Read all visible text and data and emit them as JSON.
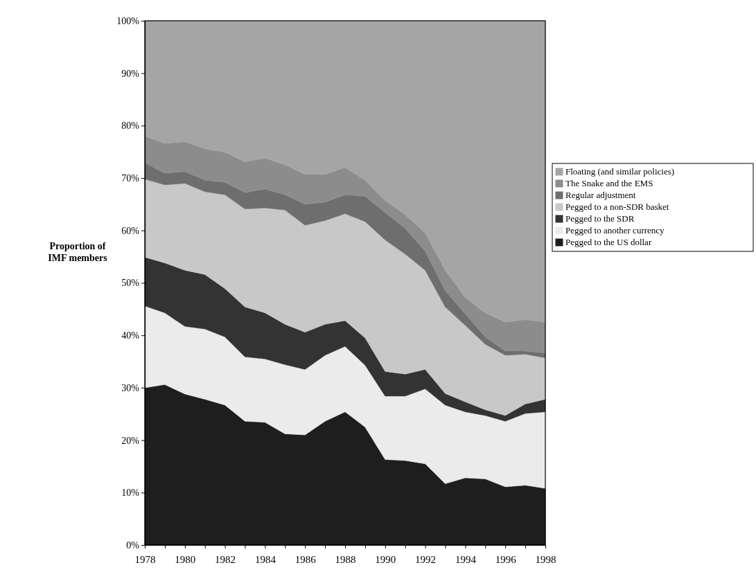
{
  "chart_data": {
    "type": "area",
    "stacked": true,
    "ylabel": "Proportion of IMF members",
    "legend": "right",
    "grid": false,
    "x": [
      1978,
      1979,
      1980,
      1981,
      1982,
      1983,
      1984,
      1985,
      1986,
      1987,
      1988,
      1989,
      1990,
      1991,
      1992,
      1993,
      1994,
      1995,
      1996,
      1997,
      1998
    ],
    "xlim": [
      1978,
      1998
    ],
    "xticks": [
      1978,
      {
        "value": 1979,
        "label": null
      },
      1980,
      {
        "value": 1981,
        "label": null
      },
      1982,
      {
        "value": 1983,
        "label": null
      },
      1984,
      {
        "value": 1985,
        "label": null
      },
      1986,
      {
        "value": 1987,
        "label": null
      },
      1988,
      {
        "value": 1989,
        "label": null
      },
      1990,
      {
        "value": 1991,
        "label": null
      },
      1992,
      {
        "value": 1993,
        "label": null
      },
      1994,
      {
        "value": 1995,
        "label": null
      },
      1996,
      {
        "value": 1997,
        "label": null
      },
      1998
    ],
    "ylim": [
      0,
      100
    ],
    "yticks": [
      {
        "value": 0,
        "label": "0%"
      },
      {
        "value": 10,
        "label": "10%"
      },
      {
        "value": 20,
        "label": "20%"
      },
      {
        "value": 30,
        "label": "30%"
      },
      {
        "value": 40,
        "label": "40%"
      },
      {
        "value": 50,
        "label": "50%"
      },
      {
        "value": 60,
        "label": "60%"
      },
      {
        "value": 70,
        "label": "70%"
      },
      {
        "value": 80,
        "label": "80%"
      },
      {
        "value": 90,
        "label": "90%"
      },
      {
        "value": 100,
        "label": "100%"
      }
    ],
    "series": [
      {
        "name": "Pegged to the US dollar",
        "color": "#1e1e1e",
        "values": [
          30.0,
          30.6,
          28.8,
          27.8,
          26.7,
          23.6,
          23.4,
          21.2,
          21.0,
          23.6,
          25.4,
          22.5,
          16.3,
          16.1,
          15.5,
          11.7,
          12.8,
          12.6,
          11.1,
          11.4,
          10.8
        ]
      },
      {
        "name": "Pegged to another currency",
        "color": "#ebebeb",
        "values": [
          15.6,
          13.7,
          12.9,
          13.4,
          13.0,
          12.3,
          12.1,
          13.2,
          12.5,
          12.6,
          12.5,
          11.8,
          12.1,
          12.3,
          14.3,
          15.0,
          12.6,
          12.1,
          12.5,
          13.7,
          14.6
        ]
      },
      {
        "name": "Pegged to the SDR",
        "color": "#333333",
        "values": [
          9.3,
          9.5,
          10.7,
          10.4,
          9.2,
          9.5,
          8.8,
          7.7,
          7.1,
          5.9,
          4.9,
          5.2,
          4.7,
          4.2,
          3.7,
          2.2,
          1.9,
          1.1,
          1.1,
          1.8,
          2.4
        ]
      },
      {
        "name": "Pegged to a non-SDR basket",
        "color": "#c8c8c8",
        "values": [
          14.9,
          14.9,
          16.6,
          15.8,
          17.9,
          18.7,
          20.0,
          21.8,
          20.4,
          19.8,
          20.4,
          22.2,
          25.1,
          22.9,
          18.9,
          16.5,
          14.6,
          12.5,
          11.5,
          9.5,
          7.9
        ]
      },
      {
        "name": "Regular adjustment",
        "color": "#6e6e6e",
        "values": [
          3.1,
          2.2,
          2.2,
          2.2,
          2.4,
          3.1,
          3.6,
          2.9,
          4.0,
          3.5,
          3.6,
          4.8,
          5.2,
          4.9,
          3.6,
          3.1,
          2.2,
          1.4,
          0.8,
          0.6,
          0.9
        ]
      },
      {
        "name": "The Snake and the EMS",
        "color": "#8c8c8c",
        "values": [
          5.1,
          5.7,
          5.7,
          6.0,
          5.7,
          5.9,
          5.9,
          5.7,
          5.7,
          5.3,
          5.2,
          3.1,
          2.3,
          2.6,
          3.5,
          3.9,
          3.1,
          4.6,
          5.5,
          6.0,
          5.9
        ]
      },
      {
        "name": "Floating (and similar policies)",
        "color": "#a5a5a5",
        "values": [
          22.0,
          23.4,
          23.1,
          24.4,
          25.1,
          26.9,
          26.2,
          27.5,
          29.3,
          29.3,
          28.0,
          30.4,
          34.3,
          37.0,
          40.5,
          47.6,
          52.8,
          55.7,
          57.5,
          57.0,
          57.5
        ]
      }
    ]
  }
}
